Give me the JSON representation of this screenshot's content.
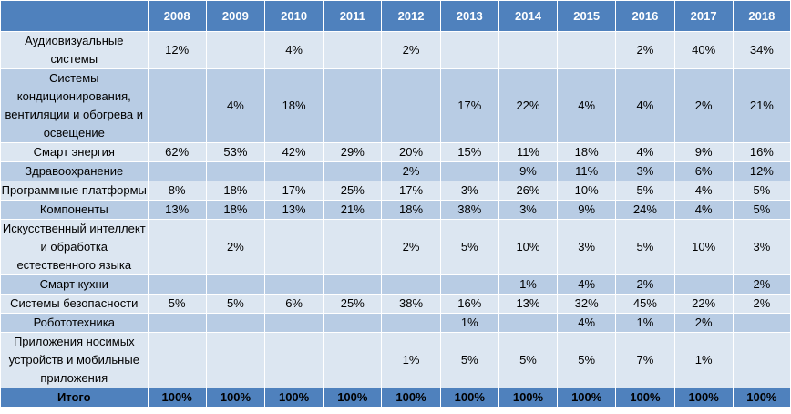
{
  "years": [
    "2008",
    "2009",
    "2010",
    "2011",
    "2012",
    "2013",
    "2014",
    "2015",
    "2016",
    "2017",
    "2018"
  ],
  "rows": [
    {
      "label": "Аудиовизуальные системы",
      "values": [
        "12%",
        "",
        "4%",
        "",
        "2%",
        "",
        "",
        "",
        "2%",
        "40%",
        "34%"
      ]
    },
    {
      "label": "Системы кондиционирования, вентиляции и обогрева и освещение",
      "values": [
        "",
        "4%",
        "18%",
        "",
        "",
        "17%",
        "22%",
        "4%",
        "4%",
        "2%",
        "21%"
      ]
    },
    {
      "label": "Смарт энергия",
      "values": [
        "62%",
        "53%",
        "42%",
        "29%",
        "20%",
        "15%",
        "11%",
        "18%",
        "4%",
        "9%",
        "16%"
      ]
    },
    {
      "label": "Здравоохранение",
      "values": [
        "",
        "",
        "",
        "",
        "2%",
        "",
        "9%",
        "11%",
        "3%",
        "6%",
        "12%"
      ]
    },
    {
      "label": "Программные платформы",
      "values": [
        "8%",
        "18%",
        "17%",
        "25%",
        "17%",
        "3%",
        "26%",
        "10%",
        "5%",
        "4%",
        "5%"
      ]
    },
    {
      "label": "Компоненты",
      "values": [
        "13%",
        "18%",
        "13%",
        "21%",
        "18%",
        "38%",
        "3%",
        "9%",
        "24%",
        "4%",
        "5%"
      ]
    },
    {
      "label": "Искусственный интеллект  и обработка естественного языка",
      "values": [
        "",
        "2%",
        "",
        "",
        "2%",
        "5%",
        "10%",
        "3%",
        "5%",
        "10%",
        "3%"
      ]
    },
    {
      "label": "Смарт кухни",
      "values": [
        "",
        "",
        "",
        "",
        "",
        "",
        "1%",
        "4%",
        "2%",
        "",
        "2%"
      ]
    },
    {
      "label": "Системы безопасности",
      "values": [
        "5%",
        "5%",
        "6%",
        "25%",
        "38%",
        "16%",
        "13%",
        "32%",
        "45%",
        "22%",
        "2%"
      ]
    },
    {
      "label": "Робототехника",
      "values": [
        "",
        "",
        "",
        "",
        "",
        "1%",
        "",
        "4%",
        "1%",
        "2%",
        ""
      ]
    },
    {
      "label": "Приложения носимых устройств и мобильные приложения",
      "values": [
        "",
        "",
        "",
        "",
        "1%",
        "5%",
        "5%",
        "5%",
        "7%",
        "1%",
        ""
      ]
    }
  ],
  "total": {
    "label": "Итого",
    "values": [
      "100%",
      "100%",
      "100%",
      "100%",
      "100%",
      "100%",
      "100%",
      "100%",
      "100%",
      "100%",
      "100%"
    ]
  },
  "colors": {
    "header": "#4f81bd",
    "row_light": "#dce6f1",
    "row_dark": "#b8cce4"
  }
}
